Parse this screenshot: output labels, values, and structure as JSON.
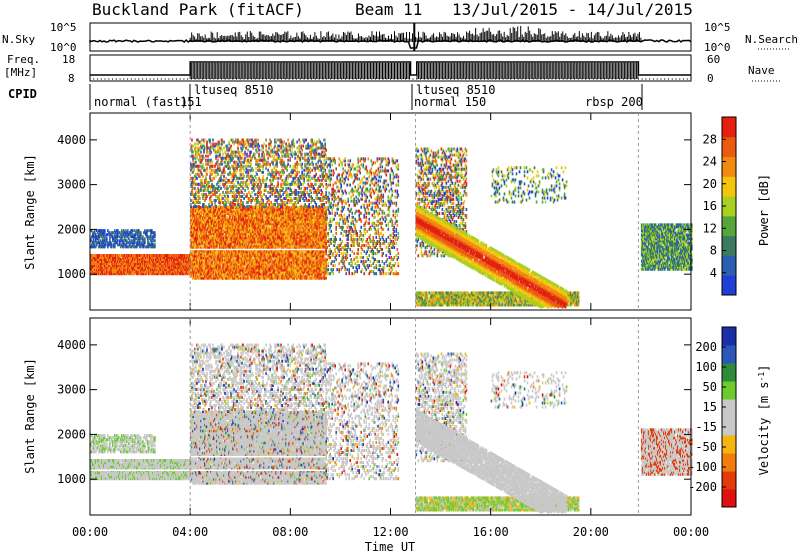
{
  "header": {
    "site": "Buckland Park (fitACF)",
    "beam": "Beam 11",
    "dates": "13/Jul/2015 - 14/Jul/2015"
  },
  "strip": {
    "nsky_label": "N.Sky",
    "nsky_top": "10^5",
    "nsky_bottom": "10^0",
    "nsearch_label": "N.Search",
    "nsearch_top": "10^5",
    "nsearch_bottom": "10^0",
    "freq_label": "Freq.",
    "freq_unit": "[MHz]",
    "freq_top": "18",
    "freq_bottom": "8",
    "nave_label": "Nave",
    "nave_top": "60",
    "nave_bottom": "0",
    "cpid_label": "CPID"
  },
  "modes": [
    {
      "label": "normal (fast)"
    },
    {
      "label": "151"
    },
    {
      "label": "ltuseq 8510"
    },
    {
      "label": "ltuseq 8510"
    },
    {
      "label": "normal 150"
    },
    {
      "label": "rbsp 200"
    }
  ],
  "colors": {
    "power": [
      "#1f3fd6",
      "#2a5fb0",
      "#3b7a5e",
      "#56a43a",
      "#a8d020",
      "#f2c60e",
      "#f28a10",
      "#ec5a10",
      "#e52010"
    ],
    "velocity": [
      "#1a2ea6",
      "#2a57b8",
      "#2f8a3a",
      "#6ccc2e",
      "#c8c8c8",
      "#c8c8c8",
      "#f5b50e",
      "#f27c0c",
      "#e23a0a",
      "#e01010"
    ]
  },
  "chart_data": [
    {
      "type": "heatmap",
      "name": "power-panel",
      "ylabel": "Slant Range [km]",
      "yticks": [
        "1000",
        "2000",
        "3000",
        "4000"
      ],
      "ylim": [
        200,
        4600
      ],
      "x": [
        "00:00",
        "04:00",
        "08:00",
        "12:00",
        "16:00",
        "20:00",
        "00:00"
      ],
      "colorbar": {
        "label": "Power [dB]",
        "ticks": [
          "4",
          "8",
          "12",
          "16",
          "20",
          "24",
          "28"
        ],
        "range": [
          0,
          32
        ]
      },
      "echo_regions": [
        {
          "t_start": 0.0,
          "t_end": 4.0,
          "range_start": 1000,
          "range_end": 1400,
          "level": "high"
        },
        {
          "t_start": 0.0,
          "t_end": 2.5,
          "range_start": 1600,
          "range_end": 2000,
          "level": "low"
        },
        {
          "t_start": 4.0,
          "t_end": 9.5,
          "range_start": 900,
          "range_end": 2600,
          "level": "high"
        },
        {
          "t_start": 4.0,
          "t_end": 9.5,
          "range_start": 2600,
          "range_end": 4000,
          "level": "mixed"
        },
        {
          "t_start": 9.5,
          "t_end": 12.0,
          "range_start": 1000,
          "range_end": 3500,
          "level": "mixed"
        },
        {
          "t_start": 13.0,
          "t_end": 19.5,
          "range_start": 300,
          "range_end": 2200,
          "level": "high"
        },
        {
          "t_start": 22.0,
          "t_end": 24.0,
          "range_start": 1100,
          "range_end": 2100,
          "level": "mid"
        }
      ]
    },
    {
      "type": "heatmap",
      "name": "velocity-panel",
      "ylabel": "Slant Range [km]",
      "yticks": [
        "1000",
        "2000",
        "3000",
        "4000"
      ],
      "ylim": [
        200,
        4600
      ],
      "x": [
        "00:00",
        "04:00",
        "08:00",
        "12:00",
        "16:00",
        "20:00",
        "00:00"
      ],
      "xlabel": "Time UT",
      "colorbar": {
        "label": "Velocity [m s^-1]",
        "ticks": [
          "200",
          "100",
          "50",
          "15",
          "-15",
          "-50",
          "-100",
          "-200"
        ],
        "range": [
          -250,
          250
        ]
      }
    }
  ]
}
